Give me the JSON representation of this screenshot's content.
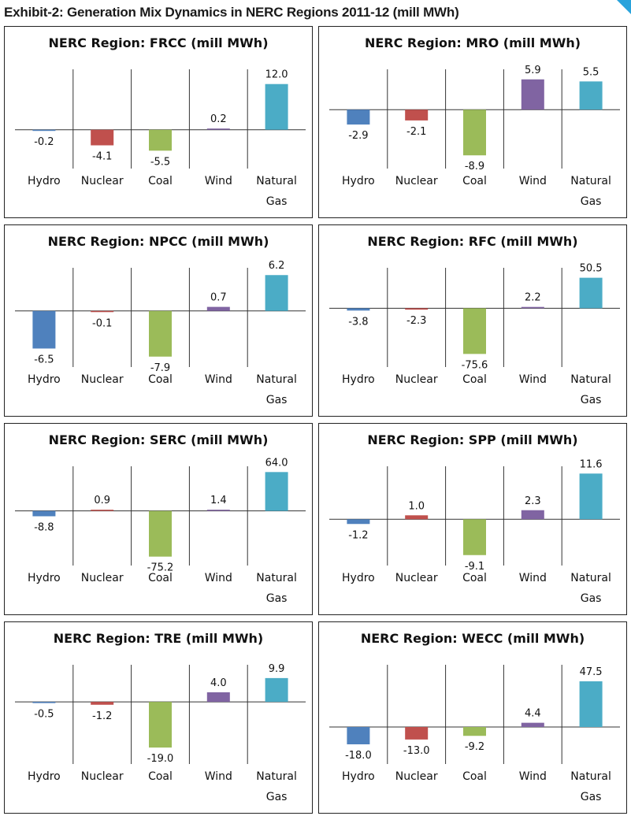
{
  "title": "Exhibit-2: Generation Mix Dynamics in NERC Regions 2011-12 (mill MWh)",
  "colors": {
    "Hydro": "#4f81bd",
    "Nuclear": "#c0504d",
    "Coal": "#9bbb59",
    "Wind": "#8064a2",
    "Natural Gas": "#4bacc6"
  },
  "chart_data": [
    {
      "type": "bar",
      "title": "NERC Region: FRCC (mill MWh)",
      "categories": [
        "Hydro",
        "Nuclear",
        "Coal",
        "Wind",
        "Natural Gas"
      ],
      "values": [
        -0.2,
        -4.1,
        -5.5,
        0.2,
        12.0
      ],
      "labels": [
        "-0.2",
        "-4.1",
        "-5.5",
        "0.2",
        "12.0"
      ]
    },
    {
      "type": "bar",
      "title": "NERC Region: MRO (mill MWh)",
      "categories": [
        "Hydro",
        "Nuclear",
        "Coal",
        "Wind",
        "Natural Gas"
      ],
      "values": [
        -2.9,
        -2.1,
        -8.9,
        5.9,
        5.5
      ],
      "labels": [
        "-2.9",
        "-2.1",
        "-8.9",
        "5.9",
        "5.5"
      ]
    },
    {
      "type": "bar",
      "title": "NERC Region: NPCC (mill MWh)",
      "categories": [
        "Hydro",
        "Nuclear",
        "Coal",
        "Wind",
        "Natural Gas"
      ],
      "values": [
        -6.5,
        -0.1,
        -7.9,
        0.7,
        6.2
      ],
      "labels": [
        "-6.5",
        "-0.1",
        "-7.9",
        "0.7",
        "6.2"
      ]
    },
    {
      "type": "bar",
      "title": "NERC Region: RFC (mill MWh)",
      "categories": [
        "Hydro",
        "Nuclear",
        "Coal",
        "Wind",
        "Natural Gas"
      ],
      "values": [
        -3.8,
        -2.3,
        -75.6,
        2.2,
        50.5
      ],
      "labels": [
        "-3.8",
        "-2.3",
        "-75.6",
        "2.2",
        "50.5"
      ]
    },
    {
      "type": "bar",
      "title": "NERC Region: SERC (mill MWh)",
      "categories": [
        "Hydro",
        "Nuclear",
        "Coal",
        "Wind",
        "Natural Gas"
      ],
      "values": [
        -8.8,
        0.9,
        -75.2,
        1.4,
        64.0
      ],
      "labels": [
        "-8.8",
        "0.9",
        "-75.2",
        "1.4",
        "64.0"
      ]
    },
    {
      "type": "bar",
      "title": "NERC Region: SPP (mill MWh)",
      "categories": [
        "Hydro",
        "Nuclear",
        "Coal",
        "Wind",
        "Natural Gas"
      ],
      "values": [
        -1.2,
        1.0,
        -9.1,
        2.3,
        11.6
      ],
      "labels": [
        "-1.2",
        "1.0",
        "-9.1",
        "2.3",
        "11.6"
      ]
    },
    {
      "type": "bar",
      "title": "NERC Region: TRE (mill MWh)",
      "categories": [
        "Hydro",
        "Nuclear",
        "Coal",
        "Wind",
        "Natural Gas"
      ],
      "values": [
        -0.5,
        -1.2,
        -19.0,
        4.0,
        9.9
      ],
      "labels": [
        "-0.5",
        "-1.2",
        "-19.0",
        "4.0",
        "9.9"
      ]
    },
    {
      "type": "bar",
      "title": "NERC Region: WECC (mill MWh)",
      "categories": [
        "Hydro",
        "Nuclear",
        "Coal",
        "Wind",
        "Natural Gas"
      ],
      "values": [
        -18.0,
        -13.0,
        -9.2,
        4.4,
        47.5
      ],
      "labels": [
        "-18.0",
        "-13.0",
        "-9.2",
        "4.4",
        "47.5"
      ]
    }
  ]
}
